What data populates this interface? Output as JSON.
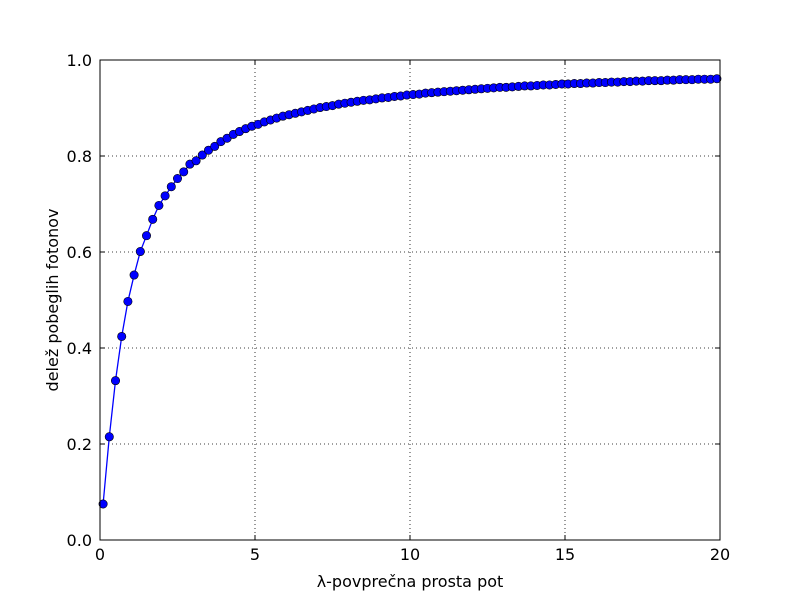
{
  "chart_data": {
    "type": "line",
    "title": "",
    "xlabel": "λ-povprečna prosta pot",
    "ylabel": "delež pobeglih fotonov",
    "xlim": [
      0,
      20
    ],
    "ylim": [
      0.0,
      1.0
    ],
    "x_ticks": [
      "0",
      "5",
      "10",
      "15",
      "20"
    ],
    "y_ticks": [
      "0.0",
      "0.2",
      "0.4",
      "0.6",
      "0.8",
      "1.0"
    ],
    "grid": true,
    "legend": "none",
    "series": [
      {
        "color": "#0000ff",
        "marker": "circle",
        "x": [
          0.1,
          0.3,
          0.5,
          0.7,
          0.9,
          1.1,
          1.3,
          1.5,
          1.7,
          1.9,
          2.1,
          2.3,
          2.5,
          2.7,
          2.9,
          3.1,
          3.3,
          3.5,
          3.7,
          3.9,
          4.1,
          4.3,
          4.5,
          4.7,
          4.9,
          5.1,
          5.3,
          5.5,
          5.7,
          5.9,
          6.1,
          6.3,
          6.5,
          6.7,
          6.9,
          7.1,
          7.3,
          7.5,
          7.7,
          7.9,
          8.1,
          8.3,
          8.5,
          8.7,
          8.9,
          9.1,
          9.3,
          9.5,
          9.7,
          9.9,
          10.1,
          10.3,
          10.5,
          10.7,
          10.9,
          11.1,
          11.3,
          11.5,
          11.7,
          11.9,
          12.1,
          12.3,
          12.5,
          12.7,
          12.9,
          13.1,
          13.3,
          13.5,
          13.7,
          13.9,
          14.1,
          14.3,
          14.5,
          14.7,
          14.9,
          15.1,
          15.3,
          15.5,
          15.7,
          15.9,
          16.1,
          16.3,
          16.5,
          16.7,
          16.9,
          17.1,
          17.3,
          17.5,
          17.7,
          17.9,
          18.1,
          18.3,
          18.5,
          18.7,
          18.9,
          19.1,
          19.3,
          19.5,
          19.7,
          19.9
        ],
        "y": [
          0.075,
          0.215,
          0.332,
          0.424,
          0.497,
          0.552,
          0.601,
          0.634,
          0.668,
          0.697,
          0.717,
          0.736,
          0.753,
          0.767,
          0.783,
          0.79,
          0.802,
          0.812,
          0.82,
          0.83,
          0.837,
          0.845,
          0.851,
          0.857,
          0.862,
          0.866,
          0.871,
          0.875,
          0.879,
          0.883,
          0.886,
          0.889,
          0.892,
          0.895,
          0.898,
          0.901,
          0.903,
          0.905,
          0.908,
          0.91,
          0.912,
          0.914,
          0.916,
          0.917,
          0.919,
          0.921,
          0.922,
          0.924,
          0.925,
          0.927,
          0.928,
          0.929,
          0.931,
          0.932,
          0.933,
          0.934,
          0.935,
          0.936,
          0.937,
          0.938,
          0.939,
          0.94,
          0.941,
          0.942,
          0.943,
          0.943,
          0.944,
          0.945,
          0.946,
          0.946,
          0.947,
          0.948,
          0.948,
          0.949,
          0.95,
          0.95,
          0.951,
          0.951,
          0.952,
          0.952,
          0.953,
          0.953,
          0.954,
          0.954,
          0.955,
          0.955,
          0.956,
          0.956,
          0.957,
          0.957,
          0.957,
          0.958,
          0.958,
          0.959,
          0.959,
          0.959,
          0.96,
          0.96,
          0.96,
          0.961
        ]
      }
    ]
  }
}
